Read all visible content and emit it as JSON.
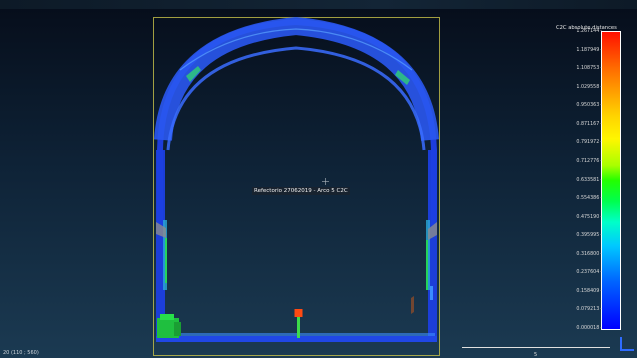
{
  "viewport": {
    "entity_label": "Refectorio 27062019 - Arco 5 C2C",
    "coordinate_readout": "20 (110 ; 560)",
    "scale_ruler_label": "5"
  },
  "color_scale": {
    "title": "C2C absolute distances",
    "ticks": [
      "1.267144",
      "1.187949",
      "1.108753",
      "1.029558",
      "0.950363",
      "0.871167",
      "0.791972",
      "0.712776",
      "0.633581",
      "0.554386",
      "0.475190",
      "0.395995",
      "0.316800",
      "0.237604",
      "0.158409",
      "0.079213",
      "0.000018"
    ],
    "gradient_colors": [
      "#ff1100",
      "#ffd200",
      "#23ff00",
      "#00ffc8",
      "#0064ff",
      "#0000ff"
    ]
  },
  "icons": {
    "cursor": "crosshair-cursor-icon",
    "axes": "axis-trihedron-icon"
  }
}
